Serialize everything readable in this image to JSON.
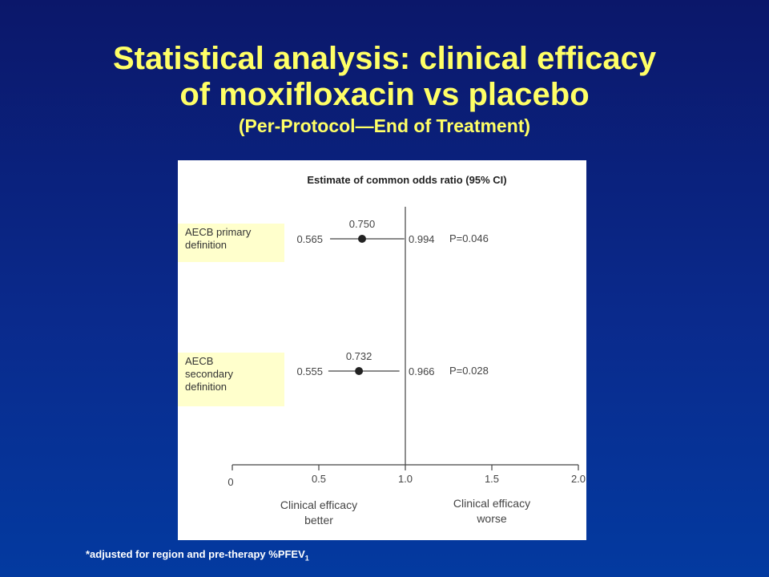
{
  "chart_data": {
    "type": "forest",
    "title_lines": [
      "Statistical analysis: clinical efficacy",
      "of moxifloxacin vs placebo"
    ],
    "subtitle": "(Per-Protocol—End of Treatment)",
    "chart_title": "Estimate of common odds ratio (95% CI)",
    "rows": [
      {
        "label": "AECB primary definition",
        "estimate": 0.75,
        "estimate_label": "0.750",
        "lower": 0.565,
        "upper": 0.994,
        "p_label": "P=0.046"
      },
      {
        "label": "AECB secondary definition",
        "estimate": 0.732,
        "lower": 0.555,
        "upper": 0.966,
        "p_label": "P=0.028"
      }
    ],
    "xlim": [
      0,
      2
    ],
    "xticks": [
      0,
      0.5,
      {
        "value": 1,
        "label": "1.0"
      },
      {
        "value": 1.5,
        "label": "1.5"
      },
      {
        "value": 2,
        "label": "2.0"
      }
    ],
    "x_label_left": "Clinical efficacy better",
    "x_label_right": "Clinical efficacy worse",
    "color": "#222222",
    "footnote": "*adjusted for region and pre-therapy %PFEV",
    "footnote_sub": "1"
  }
}
